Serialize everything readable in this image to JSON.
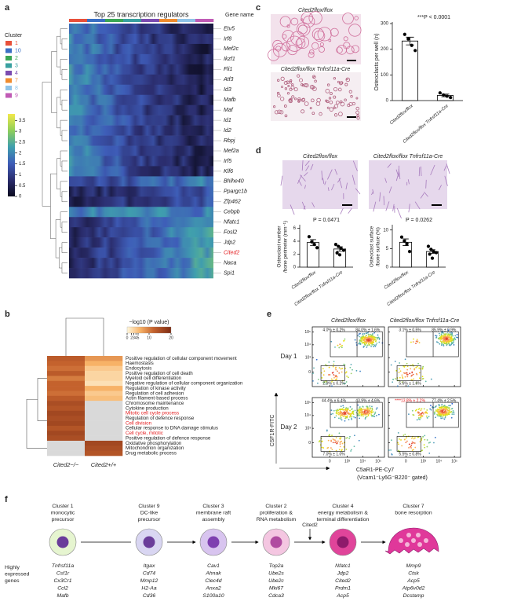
{
  "panels": {
    "a": {
      "letter": "a",
      "title": "Top 25 transcription regulators",
      "gene_header": "Gene name",
      "legend_title": "Cluster",
      "clusters": [
        {
          "text": "1",
          "color": "#e8503a"
        },
        {
          "text": "10",
          "color": "#3a6fc4"
        },
        {
          "text": "2",
          "color": "#3aa655"
        },
        {
          "text": "3",
          "color": "#39a0a0"
        },
        {
          "text": "4",
          "color": "#7b4bb0"
        },
        {
          "text": "7",
          "color": "#f08c2e"
        },
        {
          "text": "8",
          "color": "#8fc3e8"
        },
        {
          "text": "9",
          "color": "#c05bb5"
        }
      ],
      "genes": [
        "Etv5",
        "Irf8",
        "Mef2c",
        "Ikzf1",
        "Fli1",
        "Atf3",
        "Id3",
        "Mafb",
        "Maf",
        "Id1",
        "Id2",
        "Rbpj",
        "Mef2a",
        "Irf5",
        "Klf6",
        "Bhlhe40",
        "Ppargc1b",
        "Zfp462",
        "Cebpb",
        "Nfatc1",
        "Fosl2",
        "Jdp2",
        {
          "text": "Cited2",
          "color": "#e31a1c"
        },
        "Naca",
        "Spi1"
      ],
      "colorbar_lim": [
        0,
        3.8
      ],
      "colorbar_ticks": [
        0,
        0.5,
        1,
        1.5,
        2,
        2.5,
        3,
        3.5
      ]
    },
    "b": {
      "letter": "b",
      "legend_title": "−log10 (P value)",
      "colorbar_lim": [
        0,
        20
      ],
      "colorbar_ticks": [
        0,
        2,
        3,
        4,
        5,
        10,
        20
      ],
      "columns": [
        "Cited2−/−",
        "Cited2+/+"
      ],
      "null_color": "#d9d9d9",
      "terms": [
        "Positive regulation of cellular component movement",
        "Haemostasis",
        "Endocytosis",
        "Positive regulation of cell death",
        "Myeloid cell differentiation",
        "Negative regulation of cellular component organization",
        "Regulation of kinase activity",
        "Regulation of cell adhesion",
        "Actin filament-based process",
        "Chromosome maintenance",
        "Cytokine production",
        {
          "text": "Mitotic cell cycle process",
          "color": "#e31a1c"
        },
        "Regulation of defence response",
        {
          "text": "Cell division",
          "color": "#e31a1c"
        },
        "Cellular response to DNA damage stimulus",
        {
          "text": "Cell cycle, mitotic",
          "color": "#e31a1c"
        },
        "Positive regulation of defence response",
        "Oxidative phosphorylation",
        "Mitochondrion organization",
        "Drug metabolic process"
      ],
      "values": [
        [
          13,
          8
        ],
        [
          12,
          6
        ],
        [
          11,
          4
        ],
        [
          13,
          3
        ],
        [
          10,
          3
        ],
        [
          12,
          2
        ],
        [
          12,
          6
        ],
        [
          11,
          4
        ],
        [
          13,
          5
        ],
        [
          15,
          null
        ],
        [
          14,
          null
        ],
        [
          16,
          null
        ],
        [
          15,
          null
        ],
        [
          16,
          null
        ],
        [
          14,
          null
        ],
        [
          16,
          null
        ],
        [
          15,
          null
        ],
        [
          null,
          16
        ],
        [
          null,
          15
        ],
        [
          null,
          14
        ]
      ]
    },
    "c": {
      "letter": "c",
      "image_labels": [
        "Cited2flox/flox",
        "Cited2flox/flox Tnfrsf11a-Cre"
      ],
      "chart": {
        "type": "bar",
        "ylabel": "Osteoclasts per well (n)",
        "annotation": "***P < 0.0001",
        "categories": [
          "Cited2flox/flox",
          "Cited2flox/flox Tnfrsf11a-Cre"
        ],
        "values": [
          232,
          20
        ],
        "errors": [
          15,
          5
        ],
        "points": [
          [
            258,
            240,
            215,
            195
          ],
          [
            30,
            22,
            17,
            12
          ]
        ],
        "ylim": [
          0,
          300
        ],
        "yticks": [
          0,
          100,
          200,
          300
        ]
      }
    },
    "d": {
      "letter": "d",
      "image_labels": [
        "Cited2flox/flox",
        "Cited2flox/flox Tnfrsf11a-Cre"
      ],
      "charts": [
        {
          "type": "bar",
          "ylabel_lines": [
            "Osteoclast number",
            "/bone perimeter (mm⁻¹)"
          ],
          "annotation": "P = 0.0471",
          "categories": [
            "Cited2flox/flox",
            "Cited2flox/flox Tnfrsf11a-Cre"
          ],
          "values": [
            3.8,
            2.8
          ],
          "errors": [
            0.45,
            0.35
          ],
          "points": [
            [
              4.7,
              3.9,
              3.5,
              3.0
            ],
            [
              3.5,
              3.2,
              2.9,
              2.6,
              2.2,
              1.9
            ]
          ],
          "ylim": [
            0,
            6.3
          ],
          "yticks": [
            0,
            2,
            4,
            6
          ]
        },
        {
          "type": "bar",
          "ylabel_lines": [
            "Osteoclast surface",
            "/bone surface (%)"
          ],
          "annotation": "P = 0.0262",
          "categories": [
            "Cited2flox/flox",
            "Cited2flox/flox Tnfrsf11a-Cre"
          ],
          "values": [
            6.7,
            4.2
          ],
          "errors": [
            0.9,
            0.5
          ],
          "points": [
            [
              8.1,
              7.0,
              6.3,
              4.2
            ],
            [
              5.6,
              4.8,
              4.2,
              3.9,
              3.5,
              2.4
            ]
          ],
          "ylim": [
            0,
            11
          ],
          "yticks": [
            0,
            5,
            10
          ]
        }
      ]
    },
    "e": {
      "letter": "e",
      "column_labels": [
        "Cited2flox/flox",
        "Cited2flox/flox Tnfrsf11a-Cre"
      ],
      "rows": [
        {
          "label": "Day 1",
          "gates": [
            [
              "4.0% ± 0.2%",
              "84.0% ± 1.6%",
              "2.9% ± 0.2%"
            ],
            [
              "3.1% ± 0.5%",
              "85.9% ± 0.9%",
              "5.6% ± 1.6%"
            ]
          ]
        },
        {
          "label": "Day 2",
          "gates": [
            [
              "44.4% ± 6.4%",
              "43.9% ± 4.6%",
              "7.0% ± 1.0%"
            ],
            [
              {
                "text": "****13.8% ± 2.2%",
                "color": "#e31a1c"
              },
              "77.4% ± 2.5%",
              "5.5% ± 0.8%"
            ]
          ]
        }
      ],
      "ylabel": "CSF1R-FITC",
      "xlabel": "C5aR1-PE-Cy7",
      "xlabel_note": "(Vcam1⁻Ly6G⁻B220⁻ gated)",
      "scale": "biexponential",
      "lim": [
        -1000,
        250000
      ],
      "ticks": [
        0,
        {
          "value": 1000,
          "label": "10³"
        },
        {
          "value": 10000,
          "label": "10⁴"
        },
        {
          "value": 100000,
          "label": "10⁵"
        }
      ]
    },
    "f": {
      "letter": "f",
      "arrow_label": "Cited2",
      "row_label": [
        "Highly",
        "expressed",
        "genes"
      ],
      "clusters": [
        {
          "title": [
            "Cluster 1",
            "monocytic",
            "precursor"
          ],
          "color": "#e6f5d0",
          "nucleus_color": "#6a3d9a",
          "genes": [
            "Tnfrsf11a",
            "Csf1r",
            "Cx3Cr1",
            "Ccl2",
            "Mafb"
          ]
        },
        {
          "title": [
            "Cluster 9",
            "DC-like",
            "precursor"
          ],
          "color": "#d9d6f2",
          "nucleus_color": "#6a3d9a",
          "genes": [
            "Itgax",
            "Cd74",
            "Mmp12",
            "H2-Aa",
            "Cd36"
          ]
        },
        {
          "title": [
            "Cluster 3",
            "membrane raft",
            "assembly"
          ],
          "color": "#d8c4ef",
          "nucleus_color": "#7e3fb0",
          "genes": [
            "Cav1",
            "Ahnak",
            "Clec4d",
            "Anxa2",
            "S100a10"
          ]
        },
        {
          "title": [
            "Cluster 2",
            "proliferation &",
            "RNA metabolism"
          ],
          "color": "#f4c6e1",
          "nucleus_color": "#b04ba0",
          "genes": [
            "Top2a",
            "Ube2s",
            "Ube2c",
            "Mki67",
            "Cdca3"
          ]
        },
        {
          "title": [
            "Cluster 4",
            "energy metabolism &",
            "terminal differentiation"
          ],
          "color": "#e0449a",
          "nucleus_color": "#8e1a6b",
          "genes": [
            "Nfatc1",
            "Jdp2",
            "Cited2",
            "Prdm1",
            "Acp5"
          ]
        },
        {
          "title": [
            "Cluster 7",
            "bone resorption"
          ],
          "color": "#e0389a",
          "nucleus_color": "#f4b6d8",
          "genes": [
            "Mmp9",
            "Ctsk",
            "Acp5",
            "Atp6v0d2",
            "Dcstamp"
          ]
        }
      ]
    }
  }
}
